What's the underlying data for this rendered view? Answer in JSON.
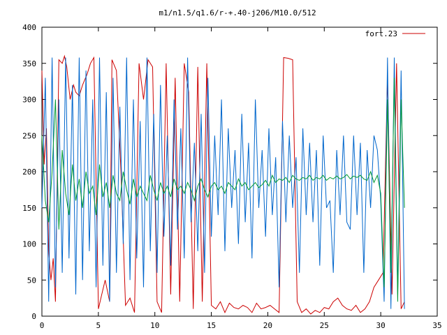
{
  "chart_data": {
    "type": "line",
    "title": "m1/n1.5/q1.6/r-+.40-j206/M10.0/512",
    "xlabel": "",
    "ylabel": "",
    "xlim": [
      0,
      35
    ],
    "ylim": [
      0,
      400
    ],
    "xticks": [
      0,
      5,
      10,
      15,
      20,
      25,
      30,
      35
    ],
    "yticks": [
      0,
      50,
      100,
      150,
      200,
      250,
      300,
      350,
      400
    ],
    "grid": false,
    "legend": {
      "placement": "top-right",
      "entry": "fort.23"
    },
    "colors": {
      "red": "#cc0000",
      "blue": "#0066cc",
      "green": "#009933"
    },
    "series": [
      {
        "name": "fort.23",
        "color": "#cc0000",
        "x": [
          0.0,
          0.2,
          0.4,
          0.6,
          0.8,
          1.0,
          1.2,
          1.5,
          1.8,
          2.0,
          2.2,
          2.5,
          2.8,
          3.0,
          3.3,
          3.6,
          4.0,
          4.3,
          4.6,
          5.0,
          5.3,
          5.6,
          6.0,
          6.2,
          6.6,
          7.0,
          7.4,
          7.8,
          8.2,
          8.6,
          9.0,
          9.4,
          9.8,
          10.2,
          10.6,
          11.0,
          11.4,
          11.8,
          12.2,
          12.6,
          13.0,
          13.4,
          13.8,
          14.2,
          14.6,
          15.0,
          15.4,
          15.8,
          16.2,
          16.6,
          17.0,
          17.4,
          17.8,
          18.2,
          18.6,
          19.0,
          19.4,
          19.8,
          20.2,
          20.6,
          21.0,
          21.4,
          21.8,
          22.2,
          22.6,
          23.0,
          23.4,
          23.8,
          24.2,
          24.6,
          25.0,
          25.4,
          25.8,
          26.2,
          26.6,
          27.0,
          27.4,
          27.8,
          28.2,
          28.6,
          29.0,
          29.4,
          29.8,
          30.2,
          30.6,
          31.0,
          31.4,
          31.8,
          32.1
        ],
        "y": [
          340,
          210,
          260,
          90,
          50,
          80,
          20,
          355,
          350,
          360,
          345,
          300,
          320,
          310,
          305,
          320,
          335,
          350,
          358,
          10,
          30,
          50,
          20,
          355,
          340,
          200,
          15,
          25,
          5,
          350,
          300,
          355,
          345,
          20,
          5,
          350,
          30,
          330,
          20,
          350,
          310,
          10,
          345,
          20,
          350,
          15,
          10,
          20,
          5,
          18,
          12,
          10,
          15,
          12,
          5,
          18,
          10,
          12,
          15,
          10,
          5,
          358,
          357,
          355,
          20,
          5,
          10,
          3,
          8,
          5,
          12,
          10,
          20,
          25,
          15,
          10,
          8,
          15,
          5,
          10,
          20,
          40,
          50,
          60,
          330,
          30,
          350,
          10,
          20
        ]
      },
      {
        "name": "",
        "color": "#0066cc",
        "x": [
          0.0,
          0.3,
          0.6,
          0.9,
          1.2,
          1.5,
          1.8,
          2.1,
          2.4,
          2.7,
          3.0,
          3.3,
          3.6,
          3.9,
          4.2,
          4.5,
          4.8,
          5.1,
          5.4,
          5.7,
          6.0,
          6.3,
          6.6,
          6.9,
          7.2,
          7.5,
          7.8,
          8.1,
          8.4,
          8.7,
          9.0,
          9.3,
          9.6,
          9.9,
          10.2,
          10.5,
          10.8,
          11.1,
          11.4,
          11.7,
          12.0,
          12.3,
          12.6,
          12.9,
          13.2,
          13.5,
          13.8,
          14.1,
          14.4,
          14.7,
          15.0,
          15.3,
          15.6,
          15.9,
          16.2,
          16.5,
          16.8,
          17.1,
          17.4,
          17.7,
          18.0,
          18.3,
          18.6,
          18.9,
          19.2,
          19.5,
          19.8,
          20.1,
          20.4,
          20.7,
          21.0,
          21.3,
          21.6,
          21.9,
          22.2,
          22.5,
          22.8,
          23.1,
          23.4,
          23.7,
          24.0,
          24.3,
          24.6,
          24.9,
          25.2,
          25.5,
          25.8,
          26.1,
          26.4,
          26.7,
          27.0,
          27.3,
          27.6,
          27.9,
          28.2,
          28.5,
          28.8,
          29.1,
          29.4,
          29.7,
          30.0,
          30.3,
          30.6,
          30.9,
          31.2,
          31.5,
          31.8,
          32.1
        ],
        "y": [
          150,
          330,
          20,
          358,
          40,
          300,
          60,
          358,
          80,
          320,
          30,
          358,
          50,
          340,
          90,
          300,
          40,
          358,
          70,
          310,
          20,
          330,
          60,
          290,
          100,
          358,
          50,
          300,
          80,
          270,
          40,
          358,
          90,
          280,
          60,
          320,
          110,
          250,
          70,
          300,
          120,
          260,
          80,
          358,
          130,
          240,
          90,
          280,
          60,
          330,
          110,
          250,
          140,
          300,
          90,
          260,
          150,
          230,
          100,
          280,
          130,
          240,
          80,
          300,
          150,
          230,
          110,
          260,
          140,
          220,
          40,
          270,
          130,
          250,
          150,
          220,
          60,
          260,
          140,
          240,
          130,
          230,
          70,
          250,
          150,
          160,
          60,
          230,
          140,
          250,
          130,
          120,
          250,
          140,
          240,
          60,
          230,
          150,
          250,
          230,
          160,
          20,
          358,
          10,
          358,
          30,
          340,
          10
        ]
      },
      {
        "name": "",
        "color": "#009933",
        "x": [
          0.0,
          0.3,
          0.6,
          0.9,
          1.2,
          1.5,
          1.8,
          2.1,
          2.4,
          2.7,
          3.0,
          3.3,
          3.6,
          3.9,
          4.2,
          4.5,
          4.8,
          5.1,
          5.4,
          5.7,
          6.0,
          6.3,
          6.6,
          6.9,
          7.2,
          7.5,
          7.8,
          8.1,
          8.4,
          8.7,
          9.0,
          9.3,
          9.6,
          9.9,
          10.2,
          10.5,
          10.8,
          11.1,
          11.4,
          11.7,
          12.0,
          12.3,
          12.6,
          12.9,
          13.2,
          13.5,
          13.8,
          14.1,
          14.4,
          14.7,
          15.0,
          15.3,
          15.6,
          15.9,
          16.2,
          16.5,
          16.8,
          17.1,
          17.4,
          17.7,
          18.0,
          18.3,
          18.6,
          18.9,
          19.2,
          19.5,
          19.8,
          20.1,
          20.4,
          20.7,
          21.0,
          21.3,
          21.6,
          21.9,
          22.2,
          22.5,
          22.8,
          23.1,
          23.4,
          23.7,
          24.0,
          24.3,
          24.6,
          24.9,
          25.2,
          25.5,
          25.8,
          26.1,
          26.4,
          26.7,
          27.0,
          27.3,
          27.6,
          27.9,
          28.2,
          28.5,
          28.8,
          29.1,
          29.4,
          29.7,
          30.0,
          30.3,
          30.6,
          30.9,
          31.2,
          31.5,
          31.8,
          32.1
        ],
        "y": [
          250,
          160,
          130,
          200,
          300,
          120,
          230,
          170,
          140,
          210,
          160,
          190,
          150,
          200,
          170,
          180,
          140,
          210,
          165,
          185,
          150,
          195,
          170,
          160,
          200,
          175,
          155,
          190,
          165,
          180,
          170,
          160,
          195,
          175,
          160,
          185,
          170,
          180,
          165,
          190,
          175,
          180,
          170,
          185,
          175,
          160,
          180,
          190,
          175,
          165,
          180,
          185,
          175,
          180,
          170,
          185,
          180,
          175,
          190,
          180,
          185,
          175,
          180,
          185,
          178,
          182,
          188,
          180,
          195,
          185,
          190,
          188,
          192,
          185,
          195,
          190,
          188,
          192,
          190,
          195,
          188,
          192,
          190,
          195,
          188,
          192,
          190,
          194,
          190,
          192,
          196,
          190,
          194,
          192,
          195,
          190,
          188,
          200,
          185,
          195,
          170,
          40,
          300,
          60,
          330,
          20,
          300,
          150
        ]
      }
    ]
  }
}
